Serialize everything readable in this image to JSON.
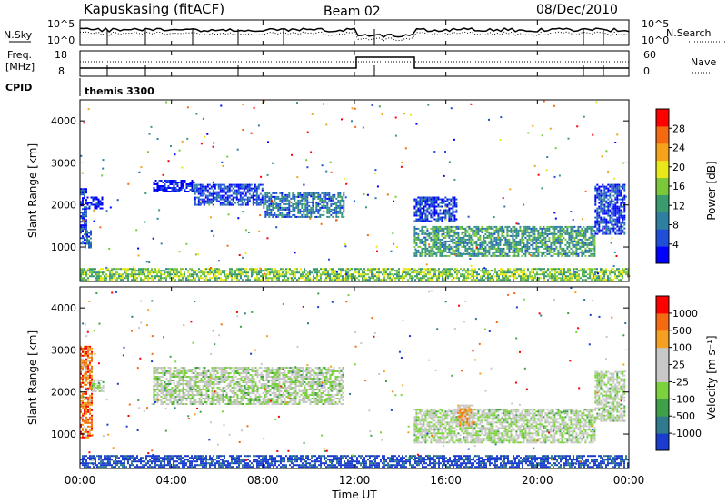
{
  "header": {
    "station": "Kapuskasing (fitACF)",
    "beam": "Beam 02",
    "date": "08/Dec/2010"
  },
  "top_panel": {
    "left_label": "N.Sky",
    "right_label": "N.Search",
    "left_ticks": [
      "10^5",
      "10^0"
    ],
    "right_ticks": [
      "10^5",
      "10^0"
    ]
  },
  "freq_panel": {
    "left_label_line1": "Freq.",
    "left_label_line2": "[MHz]",
    "right_label": "Nave",
    "left_ticks": [
      "18",
      "8"
    ],
    "right_ticks": [
      "60",
      "0"
    ]
  },
  "cpid": {
    "label": "CPID",
    "value": "themis 3300"
  },
  "x_axis": {
    "label": "Time UT",
    "ticks": [
      "00:00",
      "04:00",
      "08:00",
      "12:00",
      "16:00",
      "20:00",
      "00:00"
    ]
  },
  "power_panel": {
    "ylabel": "Slant Range [km]",
    "yticks": [
      "4000",
      "3000",
      "2000",
      "1000"
    ],
    "colorbar_label": "Power [dB]",
    "colorbar_ticks": [
      "28",
      "24",
      "20",
      "16",
      "12",
      "8",
      "4"
    ],
    "colors": [
      "#0000ff",
      "#1e4fd6",
      "#2f7fa0",
      "#3a9c6e",
      "#7bc83a",
      "#e8e81a",
      "#f5a31a",
      "#f56a10",
      "#ff0000"
    ]
  },
  "velocity_panel": {
    "ylabel": "Slant Range [km]",
    "yticks": [
      "4000",
      "3000",
      "2000",
      "1000"
    ],
    "colorbar_label": "Velocity [m s⁻¹]",
    "colorbar_ticks": [
      "1000",
      "500",
      "100",
      "25",
      "-25",
      "-100",
      "-500",
      "-1000"
    ],
    "colors": [
      "#1a3ccf",
      "#2f7a8c",
      "#3fa04a",
      "#7cd23c",
      "#c8c8c8",
      "#c8c8c8",
      "#f5a020",
      "#f56a10",
      "#ff0000"
    ]
  },
  "chart_data": {
    "type": "heatmap",
    "x_range_hours": [
      0,
      24
    ],
    "y_range_km": [
      180,
      4500
    ],
    "power_regions": [
      {
        "t0": 0.0,
        "t1": 0.3,
        "r0": 1100,
        "r1": 2400,
        "level": 1
      },
      {
        "t0": 0.3,
        "t1": 1.0,
        "r0": 1900,
        "r1": 2200,
        "level": 0
      },
      {
        "t0": 0.2,
        "t1": 0.5,
        "r0": 1000,
        "r1": 1400,
        "level": 2
      },
      {
        "t0": 3.2,
        "t1": 5.0,
        "r0": 2300,
        "r1": 2600,
        "level": 0
      },
      {
        "t0": 5.0,
        "t1": 8.0,
        "r0": 2000,
        "r1": 2500,
        "level": 1
      },
      {
        "t0": 8.0,
        "t1": 11.5,
        "r0": 1700,
        "r1": 2300,
        "level": 2
      },
      {
        "t0": 14.6,
        "t1": 22.5,
        "r0": 800,
        "r1": 1500,
        "level": 3
      },
      {
        "t0": 14.6,
        "t1": 16.5,
        "r0": 1600,
        "r1": 2200,
        "level": 1
      },
      {
        "t0": 22.5,
        "t1": 23.8,
        "r0": 1300,
        "r1": 2500,
        "level": 1
      },
      {
        "t0": 0.0,
        "t1": 24.0,
        "r0": 200,
        "r1": 500,
        "level": 4
      }
    ],
    "velocity_regions": [
      {
        "t0": 0.0,
        "t1": 0.5,
        "r0": 900,
        "r1": 3100,
        "level": 7
      },
      {
        "t0": 0.5,
        "t1": 1.0,
        "r0": 2000,
        "r1": 2300,
        "level": 4
      },
      {
        "t0": 3.2,
        "t1": 11.5,
        "r0": 1700,
        "r1": 2600,
        "level": 4
      },
      {
        "t0": 14.6,
        "t1": 22.5,
        "r0": 800,
        "r1": 1600,
        "level": 4
      },
      {
        "t0": 16.5,
        "t1": 17.2,
        "r0": 1200,
        "r1": 1700,
        "level": 6
      },
      {
        "t0": 22.5,
        "t1": 23.8,
        "r0": 1300,
        "r1": 2500,
        "level": 4
      },
      {
        "t0": 0.0,
        "t1": 24.0,
        "r0": 200,
        "r1": 500,
        "level": 0
      }
    ]
  }
}
